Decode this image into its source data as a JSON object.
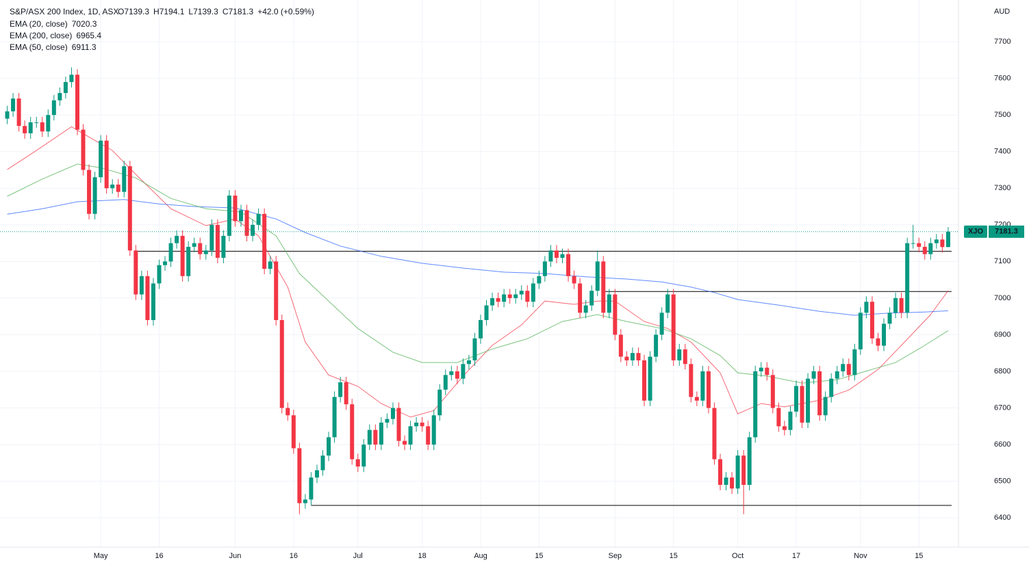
{
  "chart_data": {
    "type": "candlestick",
    "title": "S&P/ASX 200 Index, 1D, ASX",
    "legend_ohlc": [
      "O7139.3",
      "H7194.1",
      "L7139.3",
      "C7181.3",
      "+42.0 (+0.59%)"
    ],
    "symbol": "XJO",
    "y_axis_label": "AUD",
    "up_color": "#089981",
    "down_color": "#f23645",
    "grid": true,
    "ylim": [
      6320,
      7814
    ],
    "yticks": [
      6400,
      6500,
      6600,
      6700,
      6800,
      6900,
      7000,
      7100,
      7200,
      7300,
      7400,
      7500,
      7600,
      7700
    ],
    "xlim": [
      -1,
      163
    ],
    "xticks": [
      {
        "value": 16,
        "label": "May"
      },
      {
        "value": 26,
        "label": "16"
      },
      {
        "value": 39,
        "label": "Jun"
      },
      {
        "value": 49,
        "label": "16"
      },
      {
        "value": 60,
        "label": "Jul"
      },
      {
        "value": 71,
        "label": "18"
      },
      {
        "value": 81,
        "label": "Aug"
      },
      {
        "value": 91,
        "label": "15"
      },
      {
        "value": 104,
        "label": "Sep"
      },
      {
        "value": 114,
        "label": "15"
      },
      {
        "value": 125,
        "label": "Oct"
      },
      {
        "value": 135,
        "label": "17"
      },
      {
        "value": 146,
        "label": "Nov"
      },
      {
        "value": 156,
        "label": "15"
      }
    ],
    "candles": {
      "open": [
        7490,
        7510,
        7545,
        7470,
        7450,
        7480,
        7480,
        7455,
        7500,
        7540,
        7560,
        7590,
        7610,
        7460,
        7350,
        7230,
        7330,
        7430,
        7300,
        7310,
        7290,
        7360,
        7130,
        7010,
        7060,
        6940,
        7040,
        7090,
        7100,
        7150,
        7170,
        7060,
        7140,
        7150,
        7120,
        7130,
        7200,
        7110,
        7170,
        7280,
        7210,
        7240,
        7170,
        7200,
        7230,
        7080,
        7100,
        6940,
        6700,
        6680,
        6590,
        6440,
        6450,
        6510,
        6530,
        6570,
        6620,
        6730,
        6770,
        6710,
        6560,
        6540,
        6600,
        6640,
        6600,
        6660,
        6670,
        6700,
        6610,
        6600,
        6650,
        6660,
        6650,
        6600,
        6680,
        6750,
        6790,
        6800,
        6780,
        6820,
        6830,
        6890,
        6940,
        6980,
        7000,
        6990,
        7010,
        7000,
        7010,
        7020,
        6990,
        7040,
        7060,
        7100,
        7130,
        7110,
        7120,
        7060,
        7040,
        6960,
        6980,
        7020,
        7100,
        6960,
        7010,
        6900,
        6840,
        6830,
        6850,
        6830,
        6720,
        6840,
        6900,
        6960,
        7010,
        6830,
        6860,
        6820,
        6730,
        6720,
        6800,
        6700,
        6560,
        6490,
        6510,
        6480,
        6570,
        6490,
        6620,
        6800,
        6810,
        6790,
        6700,
        6650,
        6640,
        6690,
        6760,
        6660,
        6780,
        6800,
        6680,
        6730,
        6780,
        6800,
        6820,
        6790,
        6860,
        6960,
        6990,
        6890,
        6870,
        6930,
        6960,
        7000,
        6960,
        7150,
        7150,
        7140,
        7120,
        7150,
        7160,
        7139.3
      ],
      "high": [
        7525,
        7560,
        7560,
        7485,
        7495,
        7495,
        7495,
        7515,
        7555,
        7575,
        7605,
        7630,
        7625,
        7475,
        7365,
        7345,
        7445,
        7445,
        7325,
        7325,
        7375,
        7375,
        7145,
        7075,
        7075,
        7055,
        7105,
        7115,
        7165,
        7185,
        7185,
        7155,
        7165,
        7165,
        7145,
        7215,
        7215,
        7185,
        7295,
        7295,
        7255,
        7255,
        7215,
        7245,
        7245,
        7115,
        7115,
        6955,
        6715,
        6695,
        6605,
        6465,
        6525,
        6545,
        6585,
        6635,
        6745,
        6785,
        6785,
        6725,
        6575,
        6615,
        6655,
        6655,
        6675,
        6685,
        6715,
        6715,
        6625,
        6665,
        6675,
        6675,
        6665,
        6695,
        6765,
        6805,
        6815,
        6815,
        6835,
        6845,
        6905,
        6955,
        6995,
        7015,
        7015,
        7025,
        7025,
        7025,
        7035,
        7035,
        7055,
        7075,
        7115,
        7145,
        7145,
        7135,
        7135,
        7075,
        7055,
        6995,
        7035,
        7130,
        7115,
        7025,
        7025,
        6915,
        6855,
        6865,
        6865,
        6845,
        6855,
        6915,
        6975,
        7025,
        7025,
        6875,
        6875,
        6835,
        6745,
        6815,
        6815,
        6715,
        6575,
        6525,
        6525,
        6585,
        6585,
        6635,
        6815,
        6825,
        6825,
        6805,
        6715,
        6665,
        6705,
        6775,
        6775,
        6795,
        6815,
        6815,
        6745,
        6795,
        6815,
        6835,
        6835,
        6875,
        6975,
        7005,
        7005,
        6905,
        6945,
        6975,
        7015,
        7015,
        7165,
        7200,
        7165,
        7155,
        7165,
        7175,
        7175,
        7194.1
      ],
      "low": [
        7475,
        7495,
        7455,
        7435,
        7435,
        7465,
        7440,
        7440,
        7485,
        7525,
        7545,
        7575,
        7445,
        7335,
        7215,
        7215,
        7315,
        7285,
        7285,
        7275,
        7275,
        7115,
        6995,
        6995,
        6925,
        6925,
        7025,
        7075,
        7085,
        7135,
        7045,
        7045,
        7125,
        7105,
        7105,
        7115,
        7095,
        7095,
        7155,
        7195,
        7195,
        7155,
        7155,
        7185,
        7065,
        7065,
        6925,
        6685,
        6665,
        6575,
        6410,
        6425,
        6435,
        6495,
        6515,
        6555,
        6605,
        6715,
        6695,
        6545,
        6525,
        6525,
        6585,
        6585,
        6585,
        6645,
        6655,
        6595,
        6585,
        6585,
        6635,
        6635,
        6585,
        6585,
        6665,
        6735,
        6775,
        6765,
        6765,
        6805,
        6815,
        6875,
        6925,
        6965,
        6975,
        6975,
        6985,
        6985,
        6995,
        6975,
        6975,
        7025,
        7045,
        7085,
        7095,
        7095,
        7045,
        7025,
        6945,
        6945,
        6965,
        7005,
        6945,
        6945,
        6885,
        6825,
        6815,
        6815,
        6815,
        6705,
        6705,
        6825,
        6885,
        6945,
        6815,
        6815,
        6805,
        6715,
        6705,
        6705,
        6685,
        6545,
        6475,
        6475,
        6465,
        6465,
        6410,
        6475,
        6605,
        6785,
        6775,
        6685,
        6635,
        6625,
        6625,
        6675,
        6645,
        6645,
        6765,
        6665,
        6665,
        6715,
        6765,
        6785,
        6775,
        6775,
        6845,
        6945,
        6875,
        6855,
        6855,
        6915,
        6945,
        6945,
        6945,
        7135,
        7125,
        7105,
        7105,
        7135,
        7124,
        7139.3
      ],
      "close": [
        7510,
        7545,
        7470,
        7450,
        7480,
        7480,
        7455,
        7500,
        7540,
        7560,
        7590,
        7610,
        7460,
        7350,
        7230,
        7330,
        7430,
        7300,
        7310,
        7290,
        7360,
        7130,
        7010,
        7060,
        6940,
        7040,
        7090,
        7100,
        7150,
        7170,
        7060,
        7140,
        7150,
        7120,
        7130,
        7200,
        7110,
        7170,
        7280,
        7210,
        7240,
        7170,
        7200,
        7230,
        7080,
        7100,
        6940,
        6700,
        6680,
        6590,
        6440,
        6450,
        6510,
        6530,
        6570,
        6620,
        6730,
        6770,
        6710,
        6560,
        6540,
        6600,
        6640,
        6600,
        6660,
        6670,
        6700,
        6610,
        6600,
        6650,
        6660,
        6650,
        6600,
        6680,
        6750,
        6790,
        6800,
        6780,
        6820,
        6830,
        6890,
        6940,
        6980,
        7000,
        6990,
        7010,
        7000,
        7010,
        7020,
        6990,
        7040,
        7060,
        7100,
        7130,
        7110,
        7120,
        7060,
        7040,
        6960,
        6980,
        7020,
        7100,
        6960,
        7010,
        6900,
        6840,
        6830,
        6850,
        6830,
        6720,
        6840,
        6900,
        6960,
        7010,
        6830,
        6860,
        6820,
        6730,
        6720,
        6800,
        6700,
        6560,
        6490,
        6510,
        6480,
        6570,
        6490,
        6620,
        6800,
        6810,
        6790,
        6700,
        6650,
        6640,
        6690,
        6760,
        6660,
        6780,
        6800,
        6680,
        6730,
        6780,
        6800,
        6820,
        6790,
        6860,
        6960,
        6990,
        6890,
        6870,
        6930,
        6960,
        7000,
        6960,
        7150,
        7150,
        7140,
        7120,
        7150,
        7160,
        7139.3,
        7181.3
      ]
    },
    "series": [
      {
        "name": "EMA (20, close)",
        "color": "#f23645",
        "x": [
          0,
          5,
          11,
          14,
          18,
          22,
          28,
          34,
          39,
          43,
          48,
          51,
          55,
          60,
          64,
          69,
          73,
          78,
          83,
          88,
          92,
          97,
          101,
          104,
          109,
          113,
          117,
          122,
          125,
          129,
          133,
          139,
          144,
          149,
          153,
          158,
          161
        ],
        "values": [
          7351,
          7403,
          7468,
          7440,
          7403,
          7338,
          7244,
          7198,
          7216,
          7170,
          7030,
          6880,
          6790,
          6759,
          6712,
          6675,
          6693,
          6787,
          6871,
          6927,
          6992,
          6983,
          6992,
          6992,
          6936,
          6917,
          6880,
          6796,
          6684,
          6712,
          6703,
          6721,
          6749,
          6805,
          6871,
          6955,
          7020.3
        ]
      },
      {
        "name": "EMA (200, close)",
        "color": "#2962ff",
        "x": [
          0,
          6,
          12,
          20,
          26,
          32,
          39,
          46,
          51,
          57,
          64,
          71,
          78,
          85,
          92,
          99,
          106,
          112,
          117,
          121,
          125,
          132,
          139,
          145,
          151,
          157,
          161
        ],
        "values": [
          7229,
          7244,
          7263,
          7269,
          7257,
          7250,
          7246,
          7216,
          7179,
          7142,
          7114,
          7095,
          7082,
          7071,
          7067,
          7058,
          7052,
          7044,
          7030,
          7015,
          6996,
          6981,
          6964,
          6953,
          6959,
          6962,
          6965.4
        ]
      },
      {
        "name": "EMA (50, close)",
        "color": "#4caf50",
        "x": [
          0,
          6,
          12,
          16,
          22,
          28,
          34,
          40,
          46,
          50,
          55,
          60,
          66,
          71,
          77,
          83,
          89,
          95,
          101,
          106,
          112,
          117,
          122,
          125,
          130,
          136,
          142,
          146,
          152,
          157,
          161
        ],
        "values": [
          7278,
          7325,
          7366,
          7356,
          7328,
          7272,
          7244,
          7235,
          7170,
          7067,
          6992,
          6917,
          6852,
          6824,
          6824,
          6861,
          6889,
          6936,
          6955,
          6936,
          6917,
          6889,
          6843,
          6796,
          6787,
          6768,
          6777,
          6796,
          6824,
          6871,
          6911.3
        ]
      }
    ],
    "levels": [
      {
        "y": 7128,
        "x": [
          22,
          161
        ]
      },
      {
        "y": 7018,
        "x": [
          102,
          161
        ]
      },
      {
        "y": 6434,
        "x": [
          52,
          161
        ]
      }
    ]
  }
}
